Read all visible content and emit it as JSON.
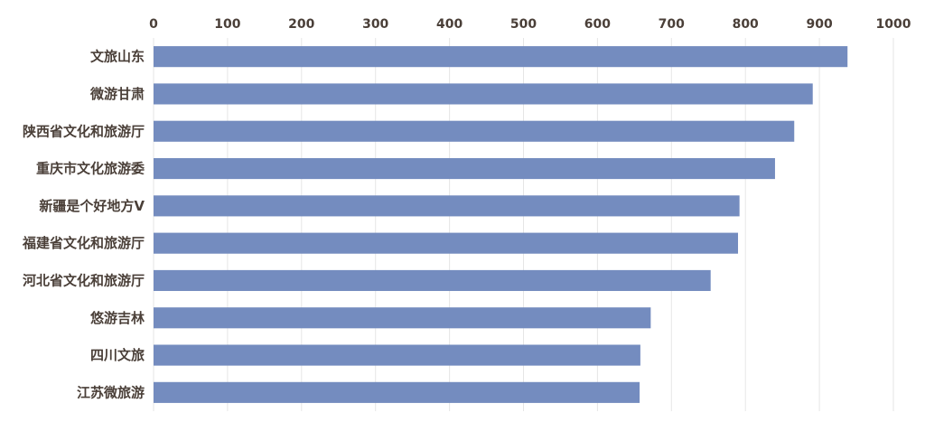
{
  "chart_data": {
    "type": "bar",
    "orientation": "horizontal",
    "categories": [
      "文旅山东",
      "微游甘肃",
      "陕西省文化和旅游厅",
      "重庆市文化旅游委",
      "新疆是个好地方V",
      "福建省文化和旅游厅",
      "河北省文化和旅游厅",
      "悠游吉林",
      "四川文旅",
      "江苏微旅游"
    ],
    "values": [
      938,
      891,
      866,
      840,
      792,
      790,
      753,
      672,
      658,
      657
    ],
    "xlim": [
      0,
      1000
    ],
    "xticks": [
      0,
      100,
      200,
      300,
      400,
      500,
      600,
      700,
      800,
      900,
      1000
    ],
    "xaxis_position": "top",
    "grid": true,
    "legend": "none",
    "bar_color": "#748cbf"
  }
}
